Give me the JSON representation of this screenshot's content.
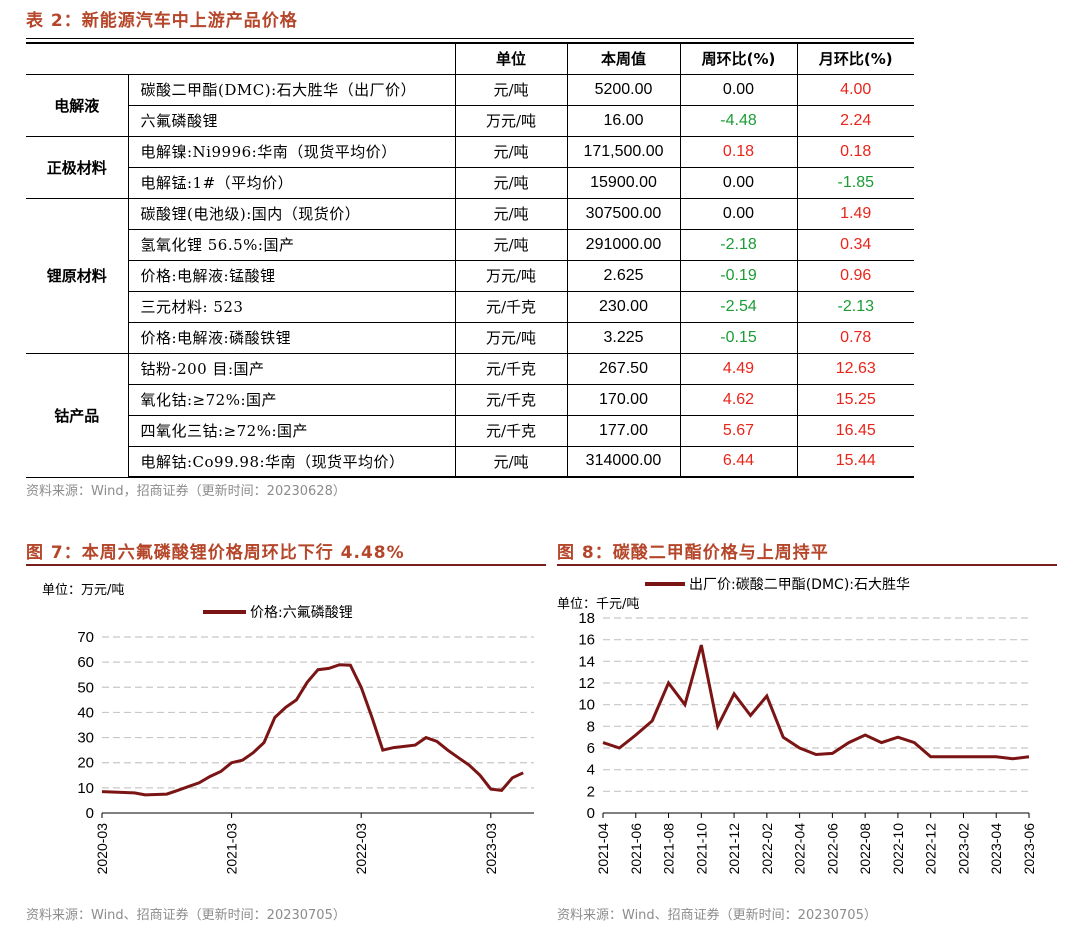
{
  "table": {
    "title": "表 2：新能源汽车中上游产品价格",
    "headers": {
      "unit": "单位",
      "value": "本周值",
      "wow": "周环比(%)",
      "mom": "月环比(%)"
    },
    "groups": [
      {
        "category": "电解液",
        "rows": [
          {
            "item": "碳酸二甲酯(DMC):石大胜华（出厂价）",
            "unit": "元/吨",
            "value": "5200.00",
            "wow": "0.00",
            "mom": "4.00"
          },
          {
            "item": "六氟磷酸锂",
            "unit": "万元/吨",
            "value": "16.00",
            "wow": "-4.48",
            "mom": "2.24"
          }
        ]
      },
      {
        "category": "正极材料",
        "rows": [
          {
            "item": "电解镍:Ni9996:华南（现货平均价）",
            "unit": "元/吨",
            "value": "171,500.00",
            "wow": "0.18",
            "mom": "0.18"
          },
          {
            "item": "电解锰:1#（平均价）",
            "unit": "元/吨",
            "value": "15900.00",
            "wow": "0.00",
            "mom": "-1.85"
          }
        ]
      },
      {
        "category": "锂原材料",
        "rows": [
          {
            "item": "碳酸锂(电池级):国内（现货价）",
            "unit": "元/吨",
            "value": "307500.00",
            "wow": "0.00",
            "mom": "1.49"
          },
          {
            "item": "氢氧化锂 56.5%:国产",
            "unit": "元/吨",
            "value": "291000.00",
            "wow": "-2.18",
            "mom": "0.34"
          },
          {
            "item": "价格:电解液:锰酸锂",
            "unit": "万元/吨",
            "value": "2.625",
            "wow": "-0.19",
            "mom": "0.96"
          },
          {
            "item": "三元材料: 523",
            "unit": "元/千克",
            "value": "230.00",
            "wow": "-2.54",
            "mom": "-2.13"
          },
          {
            "item": "价格:电解液:磷酸铁锂",
            "unit": "万元/吨",
            "value": "3.225",
            "wow": "-0.15",
            "mom": "0.78"
          }
        ]
      },
      {
        "category": "钴产品",
        "rows": [
          {
            "item": "钴粉-200 目:国产",
            "unit": "元/千克",
            "value": "267.50",
            "wow": "4.49",
            "mom": "12.63"
          },
          {
            "item": "氧化钴:≥72%:国产",
            "unit": "元/千克",
            "value": "170.00",
            "wow": "4.62",
            "mom": "15.25"
          },
          {
            "item": "四氧化三钴:≥72%:国产",
            "unit": "元/千克",
            "value": "177.00",
            "wow": "5.67",
            "mom": "16.45"
          },
          {
            "item": "电解钴:Co99.98:华南（现货平均价）",
            "unit": "元/吨",
            "value": "314000.00",
            "wow": "6.44",
            "mom": "15.44"
          }
        ]
      }
    ],
    "source": "资料来源：Wind，招商证券（更新时间：20230628）"
  },
  "colors": {
    "title": "#b5462a",
    "line": "#7b1414",
    "rule": "#7a1f1f",
    "positive": "#e8251b",
    "negative": "#1b9c34",
    "grid": "#c8c8c8"
  },
  "chart7": {
    "title": "图 7：本周六氟磷酸锂价格周环比下行 4.48%",
    "source": "资料来源：Wind、招商证券（更新时间：20230705）"
  },
  "chart8": {
    "title": "图 8：碳酸二甲酯价格与上周持平",
    "source": "资料来源：Wind、招商证券（更新时间：20230705）"
  },
  "chart_data": [
    {
      "type": "line",
      "title": "",
      "ylabel": "单位：万元/吨",
      "xlabel": "",
      "ylim": [
        0,
        70
      ],
      "yticks": [
        0,
        10,
        20,
        30,
        40,
        50,
        60,
        70
      ],
      "xticks": [
        "2020-03",
        "2021-03",
        "2022-03",
        "2023-03"
      ],
      "grid": "horizontal dashed",
      "legend": "top-center",
      "series": [
        {
          "name": "价格:六氟磷酸锂",
          "x": [
            "2020-03",
            "2020-06",
            "2020-07",
            "2020-09",
            "2020-10",
            "2020-11",
            "2020-12",
            "2021-01",
            "2021-02",
            "2021-03",
            "2021-04",
            "2021-05",
            "2021-06",
            "2021-07",
            "2021-08",
            "2021-09",
            "2021-10",
            "2021-11",
            "2021-12",
            "2022-01",
            "2022-02",
            "2022-03",
            "2022-04",
            "2022-05",
            "2022-06",
            "2022-07",
            "2022-08",
            "2022-09",
            "2022-10",
            "2022-11",
            "2022-12",
            "2023-01",
            "2023-02",
            "2023-03",
            "2023-04",
            "2023-05",
            "2023-06"
          ],
          "values": [
            8.5,
            8.0,
            7.2,
            7.5,
            9.0,
            10.5,
            12.0,
            14.5,
            16.5,
            20.0,
            21.0,
            24.0,
            28.0,
            38.0,
            42.0,
            45.0,
            52.0,
            57.0,
            57.5,
            59.0,
            58.8,
            50.0,
            38.0,
            25.0,
            26.0,
            26.5,
            27.0,
            30.0,
            28.5,
            25.0,
            22.0,
            19.0,
            15.0,
            9.5,
            9.0,
            14.0,
            16.0
          ]
        }
      ]
    },
    {
      "type": "line",
      "title": "",
      "ylabel": "单位：千元/吨",
      "xlabel": "",
      "ylim": [
        0,
        18
      ],
      "yticks": [
        0,
        2,
        4,
        6,
        8,
        10,
        12,
        14,
        16,
        18
      ],
      "xticks": [
        "2021-04",
        "2021-06",
        "2021-08",
        "2021-10",
        "2021-12",
        "2022-02",
        "2022-04",
        "2022-06",
        "2022-08",
        "2022-10",
        "2022-12",
        "2023-02",
        "2023-04",
        "2023-06"
      ],
      "grid": "horizontal dashed",
      "legend": "top-center",
      "series": [
        {
          "name": "出厂价:碳酸二甲酯(DMC):石大胜华",
          "x": [
            "2021-04",
            "2021-05",
            "2021-06",
            "2021-07",
            "2021-08",
            "2021-09",
            "2021-10",
            "2021-11",
            "2021-12",
            "2022-01",
            "2022-02",
            "2022-03",
            "2022-04",
            "2022-05",
            "2022-06",
            "2022-07",
            "2022-08",
            "2022-09",
            "2022-10",
            "2022-11",
            "2022-12",
            "2023-01",
            "2023-02",
            "2023-03",
            "2023-04",
            "2023-05",
            "2023-06"
          ],
          "values": [
            6.5,
            6.0,
            7.2,
            8.5,
            12.0,
            10.0,
            15.5,
            8.0,
            11.0,
            9.0,
            10.8,
            7.0,
            6.0,
            5.4,
            5.5,
            6.5,
            7.2,
            6.5,
            7.0,
            6.5,
            5.2,
            5.2,
            5.2,
            5.2,
            5.2,
            5.0,
            5.2
          ]
        }
      ]
    }
  ]
}
